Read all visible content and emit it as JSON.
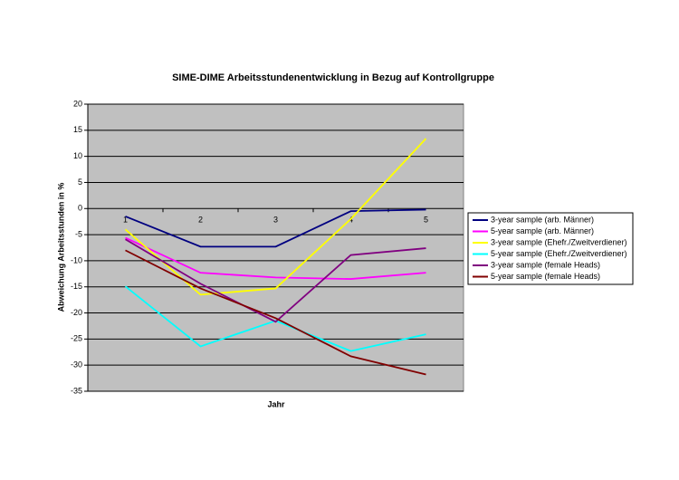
{
  "chart_data": {
    "type": "line",
    "title": "SIME-DIME Arbeitsstundenentwicklung in Bezug auf Kontrollgruppe",
    "x_label": "Jahr",
    "y_label": "Abweichung Arbeitsstunden in %",
    "categories": [
      "1",
      "2",
      "3",
      "4",
      "5"
    ],
    "series": [
      {
        "name": "3-year sample (arb. Männer)",
        "color": "#000080",
        "values": [
          -1.5,
          -7.3,
          -7.3,
          -0.5,
          -0.2
        ]
      },
      {
        "name": "5-year sample (arb. Männer)",
        "color": "#ff00ff",
        "values": [
          -5.6,
          -12.3,
          -13.2,
          -13.5,
          -12.3
        ]
      },
      {
        "name": "3-year sample (Ehefr./Zweitverdiener)",
        "color": "#ffff00",
        "values": [
          -4,
          -16.5,
          -15.3,
          -2,
          13.4
        ]
      },
      {
        "name": "5-year sample (Ehefr./Zweitverdiener)",
        "color": "#00ffff",
        "values": [
          -14.9,
          -26.4,
          -21.5,
          -27.3,
          -24.1
        ]
      },
      {
        "name": "3-year sample (female Heads)",
        "color": "#800080",
        "values": [
          -5.9,
          -14.4,
          -21.7,
          -8.9,
          -7.6
        ]
      },
      {
        "name": "5-year sample (female Heads)",
        "color": "#800000",
        "values": [
          -8,
          -15.3,
          -21,
          -28.3,
          -31.8
        ]
      }
    ],
    "ylim": [
      -35,
      20
    ],
    "yticks": [
      -35,
      -30,
      -25,
      -20,
      -15,
      -10,
      -5,
      0,
      5,
      10,
      15,
      20
    ],
    "grid": true,
    "legend": "right",
    "plot_background": "#c0c0c0"
  }
}
